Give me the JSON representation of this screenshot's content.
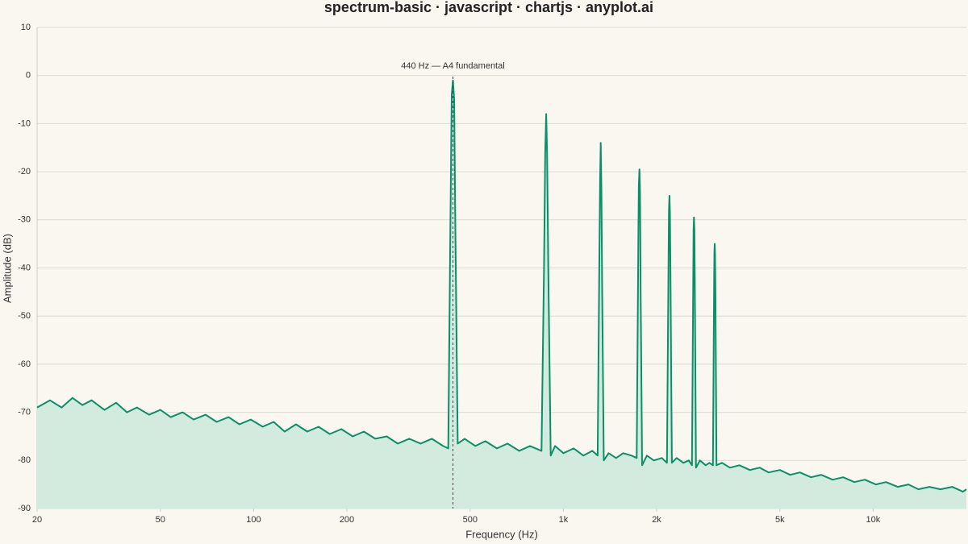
{
  "chart_data": {
    "type": "area",
    "title": "spectrum-basic · javascript · chartjs · anyplot.ai",
    "xlabel": "Frequency (Hz)",
    "ylabel": "Amplitude (dB)",
    "x": [
      20,
      22,
      24,
      26,
      28,
      30,
      33,
      36,
      39,
      42,
      46,
      50,
      54,
      59,
      64,
      70,
      76,
      83,
      90,
      98,
      107,
      116,
      126,
      137,
      149,
      162,
      176,
      192,
      209,
      227,
      247,
      269,
      292,
      318,
      346,
      376,
      409,
      425,
      432,
      436,
      440,
      444,
      448,
      456,
      480,
      520,
      560,
      610,
      660,
      720,
      780,
      850,
      866,
      874,
      880,
      886,
      894,
      910,
      940,
      1000,
      1080,
      1160,
      1240,
      1290,
      1306,
      1314,
      1320,
      1326,
      1334,
      1350,
      1400,
      1480,
      1560,
      1660,
      1725,
      1745,
      1752,
      1760,
      1768,
      1776,
      1795,
      1860,
      1960,
      2080,
      2160,
      2185,
      2192,
      2200,
      2208,
      2216,
      2240,
      2320,
      2440,
      2540,
      2600,
      2625,
      2632,
      2640,
      2648,
      2656,
      2680,
      2760,
      2880,
      2960,
      3040,
      3065,
      3072,
      3080,
      3088,
      3096,
      3120,
      3250,
      3450,
      3700,
      4000,
      4300,
      4600,
      5000,
      5400,
      5800,
      6300,
      6800,
      7400,
      8000,
      8700,
      9400,
      10200,
      11000,
      12000,
      13000,
      14000,
      15200,
      16500,
      18000,
      19500,
      20000
    ],
    "values": [
      -69,
      -67.5,
      -69,
      -67,
      -68.5,
      -67.5,
      -69.5,
      -68,
      -70,
      -69,
      -70.5,
      -69.5,
      -71,
      -70,
      -71.5,
      -70.5,
      -72,
      -71,
      -72.5,
      -71.5,
      -73,
      -72,
      -74,
      -72.5,
      -74,
      -73,
      -74.5,
      -73.5,
      -75,
      -74,
      -75.5,
      -75,
      -76.5,
      -75.5,
      -76.5,
      -75.5,
      -77,
      -77.5,
      -30,
      -4,
      -1,
      -5,
      -32,
      -76.5,
      -75.5,
      -77,
      -76,
      -77.5,
      -76.5,
      -78,
      -77,
      -78,
      -40,
      -16,
      -8,
      -16,
      -40,
      -79,
      -77,
      -78.5,
      -77.5,
      -79,
      -78,
      -79,
      -40,
      -22,
      -14,
      -23,
      -45,
      -80,
      -78.5,
      -79.5,
      -78.5,
      -79,
      -79.5,
      -35,
      -23,
      -19.5,
      -24,
      -45,
      -81,
      -79,
      -80,
      -79.5,
      -80.5,
      -38,
      -28,
      -25,
      -28.5,
      -40,
      -80.5,
      -79.5,
      -80.5,
      -80,
      -81,
      -42,
      -32,
      -29.5,
      -32,
      -42,
      -81.5,
      -80,
      -81,
      -80.5,
      -81,
      -45,
      -37,
      -35,
      -37,
      -45,
      -81,
      -80.5,
      -81.5,
      -81,
      -82,
      -81.5,
      -82.5,
      -82,
      -83,
      -82.5,
      -83.5,
      -83,
      -84,
      -83.5,
      -84.5,
      -84,
      -85,
      -84.5,
      -85.5,
      -85,
      -86,
      -85.5,
      -86,
      -85.5,
      -86.5,
      -86
    ],
    "color": "#0a8f66",
    "fill_color": "#d3ebdf",
    "xlim": [
      20,
      20000
    ],
    "xscale": "log",
    "xticks": [
      20,
      50,
      100,
      200,
      500,
      {
        "value": 1000,
        "label": "1k"
      },
      {
        "value": 2000,
        "label": "2k"
      },
      {
        "value": 5000,
        "label": "5k"
      },
      {
        "value": 10000,
        "label": "10k"
      }
    ],
    "ylim": [
      -90,
      10
    ],
    "yticks": [
      -90,
      -80,
      -70,
      -60,
      -50,
      -40,
      -30,
      -20,
      -10,
      0,
      10
    ],
    "grid": true,
    "annotation": {
      "text": "440 Hz — A4 fundamental",
      "x": 440
    }
  }
}
